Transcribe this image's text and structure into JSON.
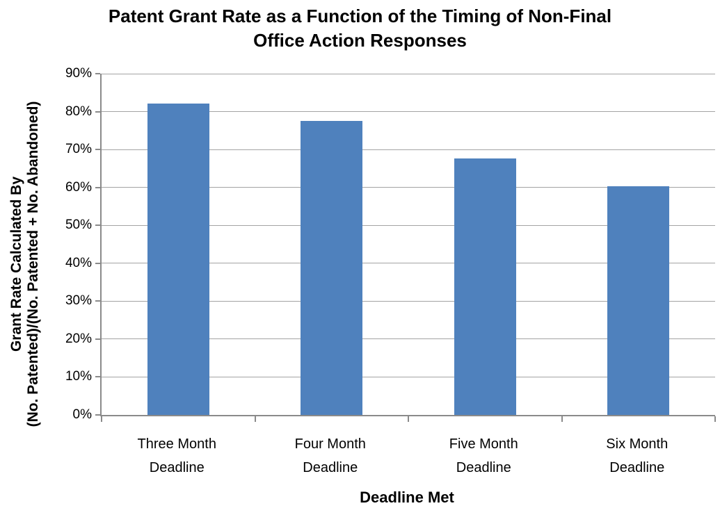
{
  "chart_data": {
    "type": "bar",
    "title": "Patent Grant Rate as a Function of the Timing of Non-Final Office Action Responses",
    "title_lines": [
      "Patent Grant Rate as a Function of the Timing of Non-Final",
      "Office Action Responses"
    ],
    "categories": [
      "Three Month Deadline",
      "Four Month Deadline",
      "Five Month Deadline",
      "Six Month Deadline"
    ],
    "values": [
      82.2,
      77.6,
      67.7,
      60.3
    ],
    "value_unit": "%",
    "xlabel": "Deadline Met",
    "ylabel": "Grant Rate Calculated By (No. Patented)/(No. Patented + No. Abandoned)",
    "ylabel_lines": [
      "Grant Rate Calculated By",
      "(No. Patented)/(No. Patented + No. Abandoned)"
    ],
    "ylim": [
      0,
      90
    ],
    "ytick_step": 10,
    "ytick_labels": [
      "0%",
      "10%",
      "20%",
      "30%",
      "40%",
      "50%",
      "60%",
      "70%",
      "80%",
      "90%"
    ],
    "grid": "horizontal",
    "legend": "none",
    "colors": {
      "bar": "#4F81BD",
      "axis": "#8a8a8a",
      "gridline": "#a3a3a3",
      "text": "#000000",
      "background": "#ffffff"
    }
  }
}
